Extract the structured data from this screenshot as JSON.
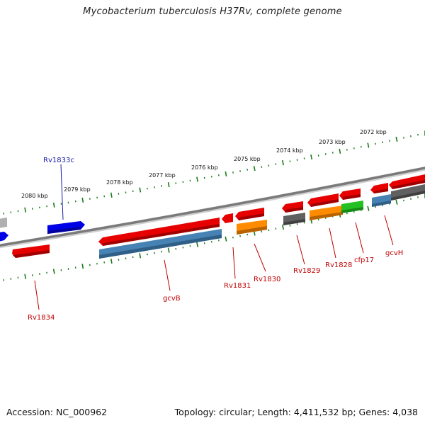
{
  "title": "Mycobacterium tuberculosis H37Rv, complete genome",
  "footer": {
    "accession": "Accession: NC_000962",
    "summary": "Topology: circular; Length: 4,411,532 bp; Genes: 4,038"
  },
  "scale_labels": [
    "2080 kbp",
    "2079 kbp",
    "2078 kbp",
    "2077 kbp",
    "2076 kbp",
    "2075 kbp",
    "2074 kbp",
    "2073 kbp",
    "2072 kbp"
  ],
  "genes": [
    {
      "name": "Rv1834",
      "color": "#e60000"
    },
    {
      "name": "Rv1833c",
      "color": "#0000e6"
    },
    {
      "name": "gcvB",
      "color": "#4682b4"
    },
    {
      "name": "Rv1831",
      "color": "#e60000"
    },
    {
      "name": "Rv1830",
      "color": "#ff8c00"
    },
    {
      "name": "Rv1829",
      "color": "#e60000"
    },
    {
      "name": "Rv1828",
      "color": "#e60000"
    },
    {
      "name": "cfp17",
      "color": "#22c022"
    },
    {
      "name": "gcvH",
      "color": "#4682b4"
    }
  ],
  "colors": {
    "cds_red": "#e60000",
    "cds_blue": "#0000e6",
    "cds_steel": "#4682b4",
    "cds_orange": "#ff8c00",
    "cds_green": "#22c022",
    "cds_gray": "#606060",
    "backbone": "#7a7a7a",
    "ticks": "#1a7a1a"
  }
}
